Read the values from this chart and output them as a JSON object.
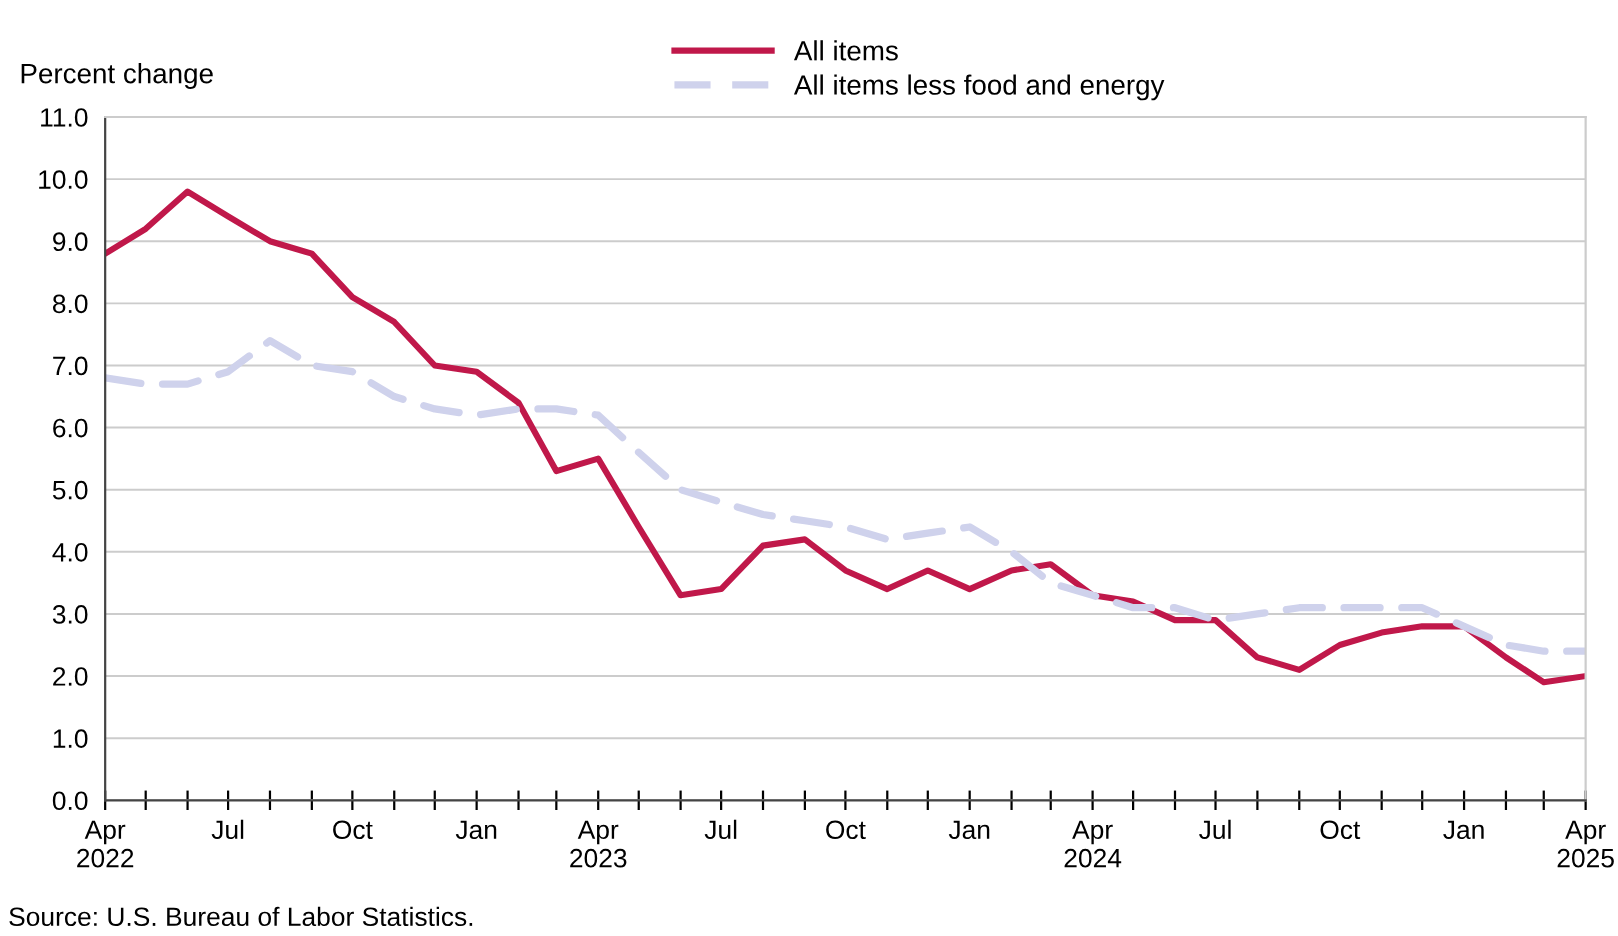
{
  "chart_data": {
    "type": "line",
    "ylabel": "Percent change",
    "x": [
      "2022-04",
      "2022-05",
      "2022-06",
      "2022-07",
      "2022-08",
      "2022-09",
      "2022-10",
      "2022-11",
      "2022-12",
      "2023-01",
      "2023-02",
      "2023-03",
      "2023-04",
      "2023-05",
      "2023-06",
      "2023-07",
      "2023-08",
      "2023-09",
      "2023-10",
      "2023-11",
      "2023-12",
      "2024-01",
      "2024-02",
      "2024-03",
      "2024-04",
      "2024-05",
      "2024-06",
      "2024-07",
      "2024-08",
      "2024-09",
      "2024-10",
      "2024-11",
      "2024-12",
      "2025-01",
      "2025-02",
      "2025-03",
      "2025-04"
    ],
    "series": [
      {
        "name": "All items",
        "color": "#c0184a",
        "line_style": "solid",
        "values": [
          8.8,
          9.2,
          9.8,
          9.4,
          9.0,
          8.8,
          8.1,
          7.7,
          7.0,
          6.9,
          6.4,
          5.3,
          5.5,
          4.4,
          3.3,
          3.4,
          4.1,
          4.2,
          3.7,
          3.4,
          3.7,
          3.4,
          3.7,
          3.8,
          3.3,
          3.2,
          2.9,
          2.9,
          2.3,
          2.1,
          2.5,
          2.7,
          2.8,
          2.8,
          2.3,
          1.9,
          2.0
        ]
      },
      {
        "name": "All items less food and energy",
        "color": "#cfd2ec",
        "line_style": "dashed",
        "values": [
          6.8,
          6.7,
          6.7,
          6.9,
          7.4,
          7.0,
          6.9,
          6.5,
          6.3,
          6.2,
          6.3,
          6.3,
          6.2,
          5.6,
          5.0,
          4.8,
          4.6,
          4.5,
          4.4,
          4.2,
          4.3,
          4.4,
          4.0,
          3.5,
          3.3,
          3.1,
          3.1,
          2.9,
          3.0,
          3.1,
          3.1,
          3.1,
          3.1,
          2.8,
          2.5,
          2.4,
          2.4
        ]
      }
    ],
    "xlim": [
      "2022-04",
      "2025-04"
    ],
    "xticks": [
      {
        "value": "2022-04",
        "label": "Apr\n2022"
      },
      {
        "value": "2022-05",
        "label": null
      },
      {
        "value": "2022-06",
        "label": null
      },
      {
        "value": "2022-07",
        "label": "Jul"
      },
      {
        "value": "2022-08",
        "label": null
      },
      {
        "value": "2022-09",
        "label": null
      },
      {
        "value": "2022-10",
        "label": "Oct"
      },
      {
        "value": "2022-11",
        "label": null
      },
      {
        "value": "2022-12",
        "label": null
      },
      {
        "value": "2023-01",
        "label": "Jan"
      },
      {
        "value": "2023-02",
        "label": null
      },
      {
        "value": "2023-03",
        "label": null
      },
      {
        "value": "2023-04",
        "label": "Apr\n2023"
      },
      {
        "value": "2023-05",
        "label": null
      },
      {
        "value": "2023-06",
        "label": null
      },
      {
        "value": "2023-07",
        "label": "Jul"
      },
      {
        "value": "2023-08",
        "label": null
      },
      {
        "value": "2023-09",
        "label": null
      },
      {
        "value": "2023-10",
        "label": "Oct"
      },
      {
        "value": "2023-11",
        "label": null
      },
      {
        "value": "2023-12",
        "label": null
      },
      {
        "value": "2024-01",
        "label": "Jan"
      },
      {
        "value": "2024-02",
        "label": null
      },
      {
        "value": "2024-03",
        "label": null
      },
      {
        "value": "2024-04",
        "label": "Apr\n2024"
      },
      {
        "value": "2024-05",
        "label": null
      },
      {
        "value": "2024-06",
        "label": null
      },
      {
        "value": "2024-07",
        "label": "Jul"
      },
      {
        "value": "2024-08",
        "label": null
      },
      {
        "value": "2024-09",
        "label": null
      },
      {
        "value": "2024-10",
        "label": "Oct"
      },
      {
        "value": "2024-11",
        "label": null
      },
      {
        "value": "2024-12",
        "label": null
      },
      {
        "value": "2025-01",
        "label": "Jan"
      },
      {
        "value": "2025-02",
        "label": null
      },
      {
        "value": "2025-03",
        "label": null
      },
      {
        "value": "2025-04",
        "label": "Apr\n2025"
      }
    ],
    "ylim": [
      0,
      11
    ],
    "yticks": [
      {
        "value": 0,
        "label": "0.0"
      },
      {
        "value": 1,
        "label": "1.0"
      },
      {
        "value": 2,
        "label": "2.0"
      },
      {
        "value": 3,
        "label": "3.0"
      },
      {
        "value": 4,
        "label": "4.0"
      },
      {
        "value": 5,
        "label": "5.0"
      },
      {
        "value": 6,
        "label": "6.0"
      },
      {
        "value": 7,
        "label": "7.0"
      },
      {
        "value": 8,
        "label": "8.0"
      },
      {
        "value": 9,
        "label": "9.0"
      },
      {
        "value": 10,
        "label": "10.0"
      },
      {
        "value": 11,
        "label": "11.0"
      }
    ],
    "grid": "y",
    "legend": "top",
    "marker": "none",
    "annotations": [
      "Source: U.S. Bureau of Labor Statistics."
    ]
  }
}
